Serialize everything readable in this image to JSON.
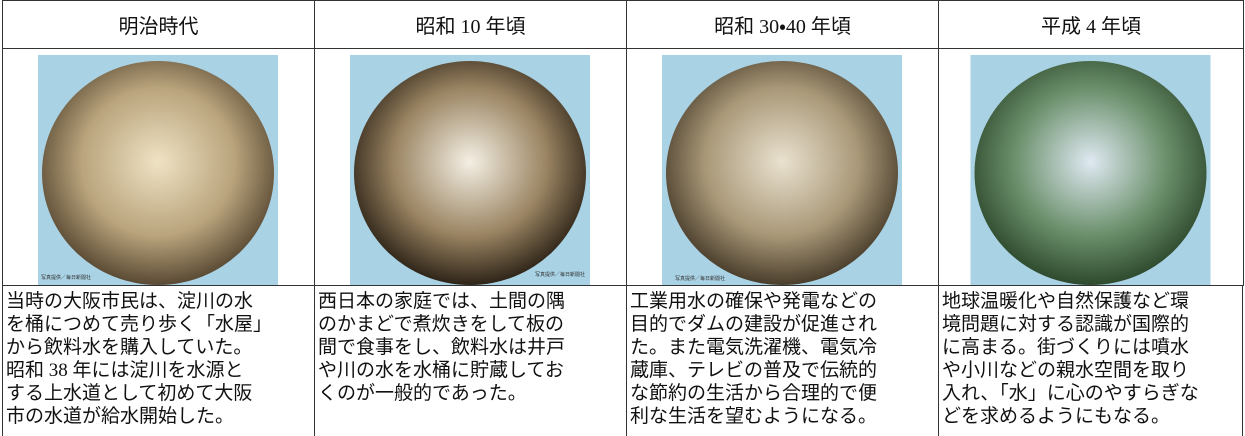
{
  "table": {
    "header": [
      "明治時代",
      "昭和 10 年頃",
      "昭和 30・40 年頃",
      "平成 4 年頃"
    ],
    "photo_credits": [
      "写真提供／毎日新聞社",
      "写真提供／毎日新聞社",
      "写真提供／毎日新聞社"
    ],
    "descriptions": [
      [
        "当時の大阪市民は、淀川の水",
        "を桶につめて売り歩く「水屋」",
        "から飲料水を購入していた。",
        "昭和 38 年には淀川を水源と",
        "する上水道として初めて大阪",
        "市の水道が給水開始した。"
      ],
      [
        "西日本の家庭では、土間の隅",
        "のかまどで煮炊きをして板の",
        "間で食事をし、飲料水は井戸",
        "や川の水を水桶に貯蔵してお",
        "くのが一般的であった。"
      ],
      [
        "工業用水の確保や発電などの",
        "目的でダムの建設が促進され",
        "た。また電気洗濯機、電気冷",
        "蔵庫、テレビの普及で伝統的",
        "な節約の生活から合理的で便",
        "利な生活を望むようになる。"
      ],
      [
        "地球温暖化や自然保護など環",
        "境問題に対する認識が国際的",
        "に高まる。街づくりには噴水",
        "や小川などの親水空間を取り",
        "入れ、「水」に心のやすらぎな",
        "どを求めるようにもなる。"
      ]
    ]
  }
}
